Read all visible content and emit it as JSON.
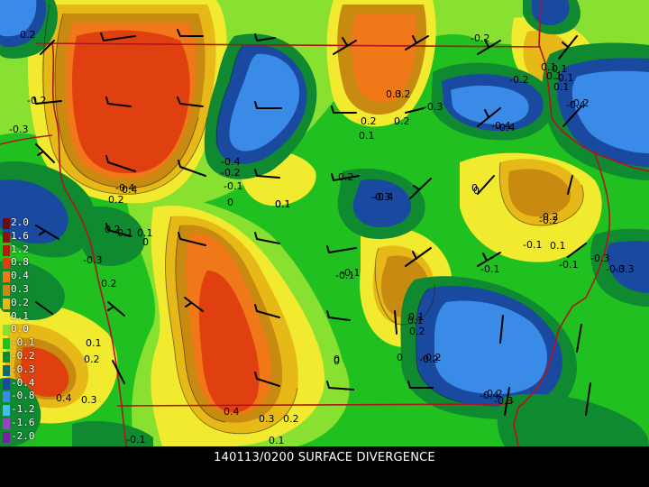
{
  "caption": "140113/0200 SURFACE DIVERGENCE",
  "legend": [
    {
      "label": "2.0",
      "color": "#6a0a0a"
    },
    {
      "label": "1.6",
      "color": "#8c1212"
    },
    {
      "label": "1.2",
      "color": "#b81a10"
    },
    {
      "label": "0.8",
      "color": "#e04010"
    },
    {
      "label": "0.4",
      "color": "#f07818"
    },
    {
      "label": "0.3",
      "color": "#c88a10"
    },
    {
      "label": "0.2",
      "color": "#e6b818"
    },
    {
      "label": "0.1",
      "color": "#f2ea2e"
    },
    {
      "label": "0.0",
      "color": "#88e030"
    },
    {
      "label": "-0.1",
      "color": "#20c020"
    },
    {
      "label": "-0.2",
      "color": "#108a30"
    },
    {
      "label": "-0.3",
      "color": "#0a6a70"
    },
    {
      "label": "-0.4",
      "color": "#1a4aa0"
    },
    {
      "label": "-0.8",
      "color": "#3a8ae8"
    },
    {
      "label": "-1.2",
      "color": "#40c0f0"
    },
    {
      "label": "-1.6",
      "color": "#9a40c0"
    },
    {
      "label": "-2.0",
      "color": "#7a20a0"
    }
  ],
  "contour_labels": [
    {
      "text": "-0.3"
    },
    {
      "text": "0.2"
    },
    {
      "text": "-0.2"
    },
    {
      "text": "0.3"
    },
    {
      "text": "0.2"
    },
    {
      "text": "0.1"
    },
    {
      "text": "-0.3"
    },
    {
      "text": "-0.4"
    },
    {
      "text": "0.1"
    },
    {
      "text": "-0.1"
    },
    {
      "text": "-0.4"
    },
    {
      "text": "-0.4"
    },
    {
      "text": "-0.2"
    },
    {
      "text": "-0.1"
    },
    {
      "text": "0.1"
    },
    {
      "text": "0.2"
    },
    {
      "text": "-0.4"
    },
    {
      "text": "-0.2"
    },
    {
      "text": "0.1"
    },
    {
      "text": "-0.3"
    },
    {
      "text": "0"
    },
    {
      "text": "-0.2"
    },
    {
      "text": "-0.1"
    },
    {
      "text": "0.4"
    },
    {
      "text": "0.2"
    },
    {
      "text": "0.1"
    },
    {
      "text": "-0.3"
    },
    {
      "text": "0.2"
    },
    {
      "text": "-0.1"
    },
    {
      "text": "0.1"
    },
    {
      "text": "0.2"
    },
    {
      "text": "0.1"
    },
    {
      "text": "-0.2"
    },
    {
      "text": "0"
    },
    {
      "text": "0.1"
    },
    {
      "text": "0.2"
    },
    {
      "text": "0.4"
    },
    {
      "text": "0.3"
    },
    {
      "text": "0.4"
    },
    {
      "text": "0.3"
    },
    {
      "text": "0.2"
    },
    {
      "text": "0.1"
    },
    {
      "text": "-0.1"
    },
    {
      "text": "0"
    },
    {
      "text": "0"
    },
    {
      "text": "-0.2"
    },
    {
      "text": "0.2"
    },
    {
      "text": "0.1"
    },
    {
      "text": "-0.1"
    },
    {
      "text": "-0.3"
    },
    {
      "text": "0"
    },
    {
      "text": "-0.2"
    },
    {
      "text": "-0.1"
    },
    {
      "text": "-0.1"
    },
    {
      "text": "-0.2"
    },
    {
      "text": "-0.3"
    },
    {
      "text": "-0.4"
    },
    {
      "text": "-0.3"
    },
    {
      "text": "-0.2"
    },
    {
      "text": "0.1"
    },
    {
      "text": "0.1"
    },
    {
      "text": "0.2"
    },
    {
      "text": "0"
    },
    {
      "text": "-0.4"
    },
    {
      "text": "-0.4"
    },
    {
      "text": "0.1"
    },
    {
      "text": "0"
    },
    {
      "text": "-0.2"
    },
    {
      "text": "0.2"
    },
    {
      "text": "-0.3"
    },
    {
      "text": "0.1"
    }
  ]
}
